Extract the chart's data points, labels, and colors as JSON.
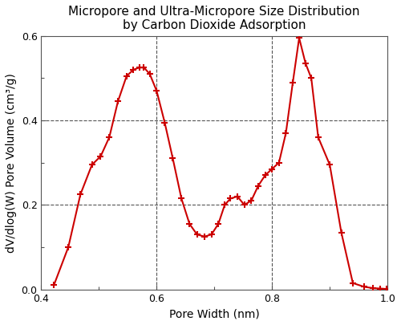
{
  "title": "Micropore and Ultra-Micropore Size Distribution\nby Carbon Dioxide Adsorption",
  "xlabel": "Pore Width (nm)",
  "ylabel": "dV/dlog(W) Pore Volume (cm³/g)",
  "xlim": [
    0.4,
    1.0
  ],
  "ylim": [
    0.0,
    0.6
  ],
  "xticks_labeled": [
    0.4,
    0.6,
    0.8,
    1.0
  ],
  "xticks_minor": [
    0.5,
    0.7,
    0.9
  ],
  "yticks": [
    0.0,
    0.2,
    0.4,
    0.6
  ],
  "vlines": [
    0.6,
    0.8
  ],
  "line_color": "#cc0000",
  "grid_color": "#555555",
  "marker": "+",
  "markersize": 6,
  "markeredgewidth": 1.5,
  "linewidth": 1.5,
  "x": [
    0.422,
    0.447,
    0.468,
    0.488,
    0.503,
    0.518,
    0.533,
    0.548,
    0.56,
    0.57,
    0.578,
    0.588,
    0.6,
    0.614,
    0.628,
    0.643,
    0.657,
    0.67,
    0.683,
    0.695,
    0.707,
    0.718,
    0.728,
    0.74,
    0.752,
    0.764,
    0.776,
    0.788,
    0.8,
    0.812,
    0.824,
    0.836,
    0.847,
    0.858,
    0.868,
    0.88,
    0.9,
    0.92,
    0.94,
    0.96,
    0.975,
    0.988,
    0.998
  ],
  "y": [
    0.01,
    0.1,
    0.225,
    0.295,
    0.315,
    0.36,
    0.445,
    0.505,
    0.52,
    0.525,
    0.525,
    0.51,
    0.47,
    0.395,
    0.31,
    0.215,
    0.155,
    0.13,
    0.125,
    0.13,
    0.155,
    0.2,
    0.215,
    0.22,
    0.2,
    0.21,
    0.245,
    0.27,
    0.285,
    0.3,
    0.37,
    0.49,
    0.595,
    0.535,
    0.5,
    0.36,
    0.295,
    0.135,
    0.015,
    0.006,
    0.003,
    0.002,
    0.001
  ],
  "background_color": "#ffffff",
  "title_fontsize": 11,
  "label_fontsize": 10,
  "tick_fontsize": 9
}
